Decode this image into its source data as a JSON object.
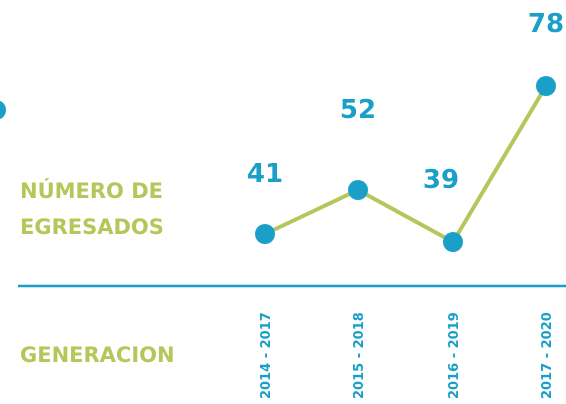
{
  "chart_data": {
    "type": "line",
    "y_label": [
      "NÚMERO DE",
      "EGRESADOS"
    ],
    "x_label": "GENERACION",
    "categories": [
      "2014 - 2017",
      "2015 - 2018",
      "2016 - 2019",
      "2017 - 2020"
    ],
    "series": [
      {
        "color": "#b6c65a",
        "marker_color": "#1aa0c8",
        "values": [
          41,
          52,
          39,
          78
        ]
      }
    ]
  }
}
